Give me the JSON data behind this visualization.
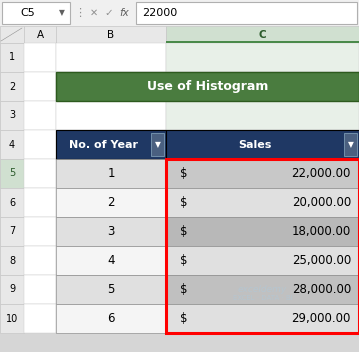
{
  "title": "Use of Histogram",
  "title_bg": "#4a7c3f",
  "title_color": "#ffffff",
  "header_bg": "#1f3864",
  "header_color": "#ffffff",
  "col1_header": "No. of Year",
  "col2_header": "Sales",
  "years": [
    1,
    2,
    3,
    4,
    5,
    6
  ],
  "sales_dollar": [
    "22,000.00",
    "20,000.00",
    "18,000.00",
    "25,000.00",
    "28,000.00",
    "29,000.00"
  ],
  "formula_bar_text": "22000",
  "cell_ref": "C5",
  "fig_bg": "#d6d6d6",
  "formula_bar_bg": "#f0f0f0",
  "col_hdr_bg": "#e8e8e8",
  "col_hdr_selected_bg": "#d0e0d0",
  "col_hdr_selected_border": "#4a8a4a",
  "row_hdr_bg": "#e8e8e8",
  "row_hdr_selected_bg": "#d0e0d0",
  "cell_bg": "#ffffff",
  "row_odd_b": "#e0e0e0",
  "row_even_b": "#f5f5f5",
  "row_odd_c": "#c8c8c8",
  "row_even_c": "#e0e0e0",
  "selection_color": "#ff0000",
  "border_light": "#c8c8c8",
  "border_dark": "#a0a0a0",
  "watermark_color": "#b0c8d8",
  "row_nums": [
    1,
    2,
    3,
    4,
    5,
    6,
    7,
    8,
    9,
    10
  ]
}
